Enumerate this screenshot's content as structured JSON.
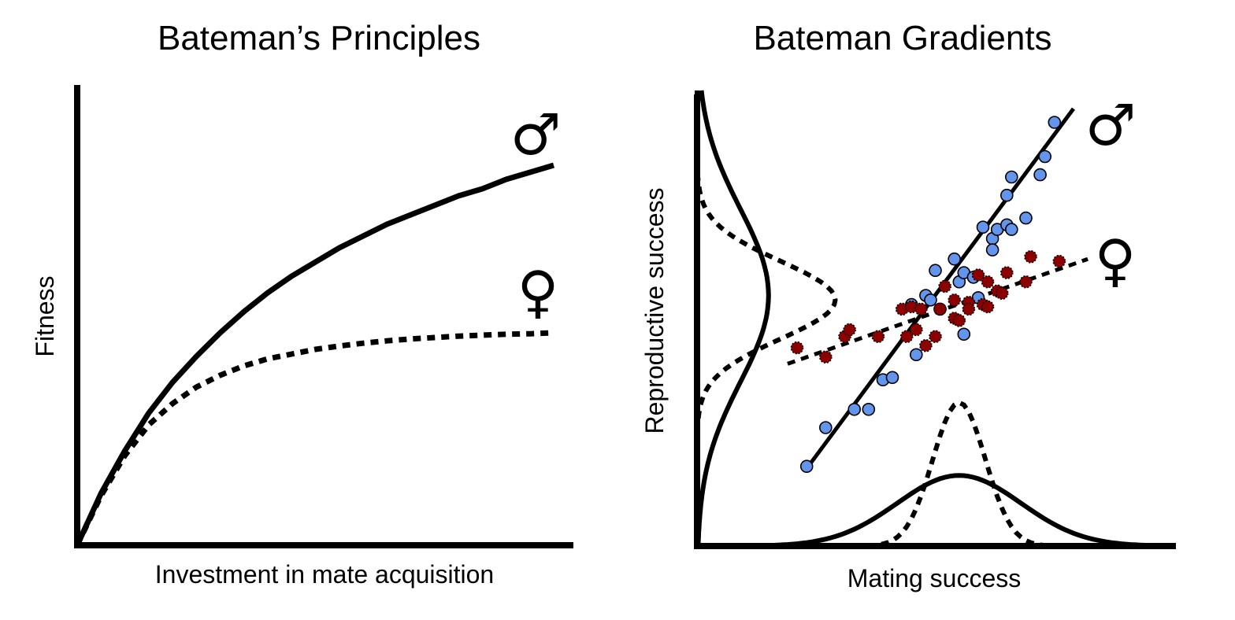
{
  "chart_data": [
    {
      "type": "line",
      "title": "Bateman’s Principles",
      "xlabel": "Investment in mate acquisition",
      "ylabel": "Fitness",
      "xlim": [
        0,
        10
      ],
      "ylim": [
        0,
        10
      ],
      "grid": false,
      "series": [
        {
          "name": "male",
          "symbol": "♂",
          "style": "solid",
          "x": [
            0,
            0.5,
            1,
            1.5,
            2,
            2.5,
            3,
            3.5,
            4,
            4.5,
            5,
            5.5,
            6,
            6.5,
            7,
            7.5,
            8,
            8.5,
            9,
            9.5,
            10
          ],
          "y": [
            0,
            1.1,
            2.0,
            2.8,
            3.45,
            4.0,
            4.5,
            4.95,
            5.35,
            5.7,
            6.0,
            6.3,
            6.55,
            6.8,
            7.0,
            7.2,
            7.4,
            7.55,
            7.75,
            7.9,
            8.05
          ]
        },
        {
          "name": "female",
          "symbol": "♀",
          "style": "dotted",
          "x": [
            0,
            0.5,
            1,
            1.5,
            2,
            2.5,
            3,
            3.5,
            4,
            4.5,
            5,
            5.5,
            6,
            6.5,
            7,
            7.5,
            8,
            8.5,
            9,
            9.5,
            10
          ],
          "y": [
            0,
            1.05,
            1.9,
            2.55,
            3.0,
            3.35,
            3.6,
            3.8,
            3.95,
            4.05,
            4.15,
            4.22,
            4.28,
            4.33,
            4.37,
            4.4,
            4.43,
            4.45,
            4.47,
            4.48,
            4.5
          ]
        }
      ]
    },
    {
      "type": "scatter",
      "title": "Bateman Gradients",
      "xlabel": "Mating success",
      "ylabel": "Reproductive success",
      "xlim": [
        0,
        10
      ],
      "ylim": [
        0,
        10
      ],
      "grid": false,
      "series": [
        {
          "name": "male",
          "symbol": "♂",
          "color": "#6495ED",
          "fit_line": {
            "style": "solid",
            "x": [
              2.3,
              7.9
            ],
            "y": [
              1.7,
              9.6
            ]
          },
          "x": [
            2.3,
            2.7,
            3.3,
            3.6,
            3.9,
            4.1,
            4.6,
            4.5,
            4.8,
            4.9,
            5.1,
            5.0,
            5.4,
            5.5,
            5.6,
            5.6,
            5.9,
            5.8,
            6.0,
            6.2,
            6.2,
            6.3,
            6.5,
            6.6,
            6.9,
            6.5,
            6.6,
            7.2,
            7.3,
            7.5
          ],
          "y": [
            1.75,
            2.6,
            3.0,
            3.0,
            3.65,
            3.7,
            4.2,
            5.3,
            5.5,
            5.4,
            5.2,
            6.05,
            6.3,
            5.8,
            6.0,
            4.65,
            5.45,
            5.9,
            7.0,
            6.75,
            6.5,
            6.95,
            7.05,
            6.95,
            7.2,
            7.7,
            8.1,
            8.15,
            8.55,
            9.3
          ]
        },
        {
          "name": "female",
          "symbol": "♀",
          "color": "#8B0000",
          "fit_line": {
            "style": "dotted",
            "x": [
              1.9,
              8.2
            ],
            "y": [
              4.0,
              6.3
            ]
          },
          "x": [
            2.1,
            2.7,
            3.1,
            3.2,
            3.8,
            4.3,
            4.4,
            4.6,
            4.5,
            4.7,
            4.8,
            5.0,
            5.1,
            5.2,
            5.4,
            5.4,
            5.5,
            5.7,
            5.7,
            5.9,
            6.0,
            6.1,
            6.1,
            6.3,
            6.5,
            6.4,
            6.9,
            7.0,
            7.6
          ],
          "y": [
            4.35,
            4.15,
            4.6,
            4.75,
            4.6,
            5.2,
            4.6,
            4.75,
            5.25,
            5.2,
            4.4,
            4.6,
            5.2,
            5.7,
            5.4,
            5.0,
            4.95,
            5.35,
            5.2,
            5.95,
            5.3,
            5.25,
            5.8,
            5.6,
            6.0,
            5.55,
            5.8,
            6.35,
            6.25
          ]
        }
      ],
      "marginal_distributions": [
        {
          "axis": "y",
          "sex": "male",
          "style": "solid",
          "description_free": true,
          "mean": 5.5,
          "spread": 1.9,
          "height": 1.5
        },
        {
          "axis": "y",
          "sex": "female",
          "style": "dotted",
          "mean": 5.4,
          "spread": 0.85,
          "height": 2.9
        },
        {
          "axis": "x",
          "sex": "male",
          "style": "solid",
          "mean": 5.5,
          "spread": 1.3,
          "height": 1.55
        },
        {
          "axis": "x",
          "sex": "female",
          "style": "dotted",
          "mean": 5.5,
          "spread": 0.55,
          "height": 3.15
        }
      ]
    }
  ]
}
